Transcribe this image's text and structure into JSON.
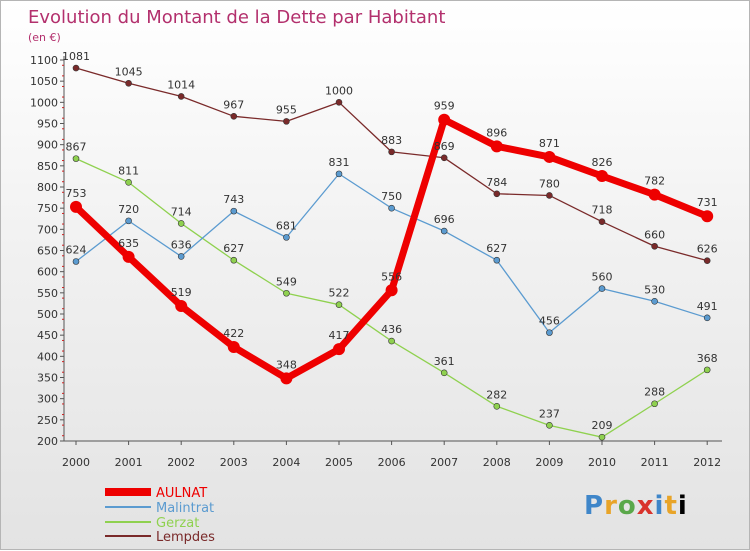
{
  "chart_data": {
    "type": "line",
    "title": "Evolution du Montant de la Dette par Habitant",
    "subtitle": "(en €)",
    "categories": [
      "2000",
      "2001",
      "2002",
      "2003",
      "2004",
      "2005",
      "2006",
      "2007",
      "2008",
      "2009",
      "2010",
      "2011",
      "2012"
    ],
    "ylim": [
      200,
      1100
    ],
    "yticks": [
      200,
      250,
      300,
      350,
      400,
      450,
      500,
      550,
      600,
      650,
      700,
      750,
      800,
      850,
      900,
      950,
      1000,
      1050,
      1100
    ],
    "grid": false,
    "legend_position": "bottom-left",
    "series": [
      {
        "name": "AULNAT",
        "color": "#ee0000",
        "values": [
          753,
          635,
          519,
          422,
          348,
          417,
          556,
          959,
          896,
          871,
          826,
          782,
          731
        ]
      },
      {
        "name": "Malintrat",
        "color": "#5b9bd0",
        "values": [
          624,
          720,
          636,
          743,
          681,
          831,
          750,
          696,
          627,
          456,
          560,
          530,
          491
        ]
      },
      {
        "name": "Gerzat",
        "color": "#8fd14f",
        "values": [
          867,
          811,
          714,
          627,
          549,
          522,
          436,
          361,
          282,
          237,
          209,
          288,
          368
        ]
      },
      {
        "name": "Lempdes",
        "color": "#7a2a2a",
        "values": [
          1081,
          1045,
          1014,
          967,
          955,
          1000,
          883,
          869,
          784,
          780,
          718,
          660,
          626
        ]
      }
    ]
  },
  "logo_text": [
    "P",
    "r",
    "o",
    "x",
    "i",
    "t",
    "i"
  ]
}
